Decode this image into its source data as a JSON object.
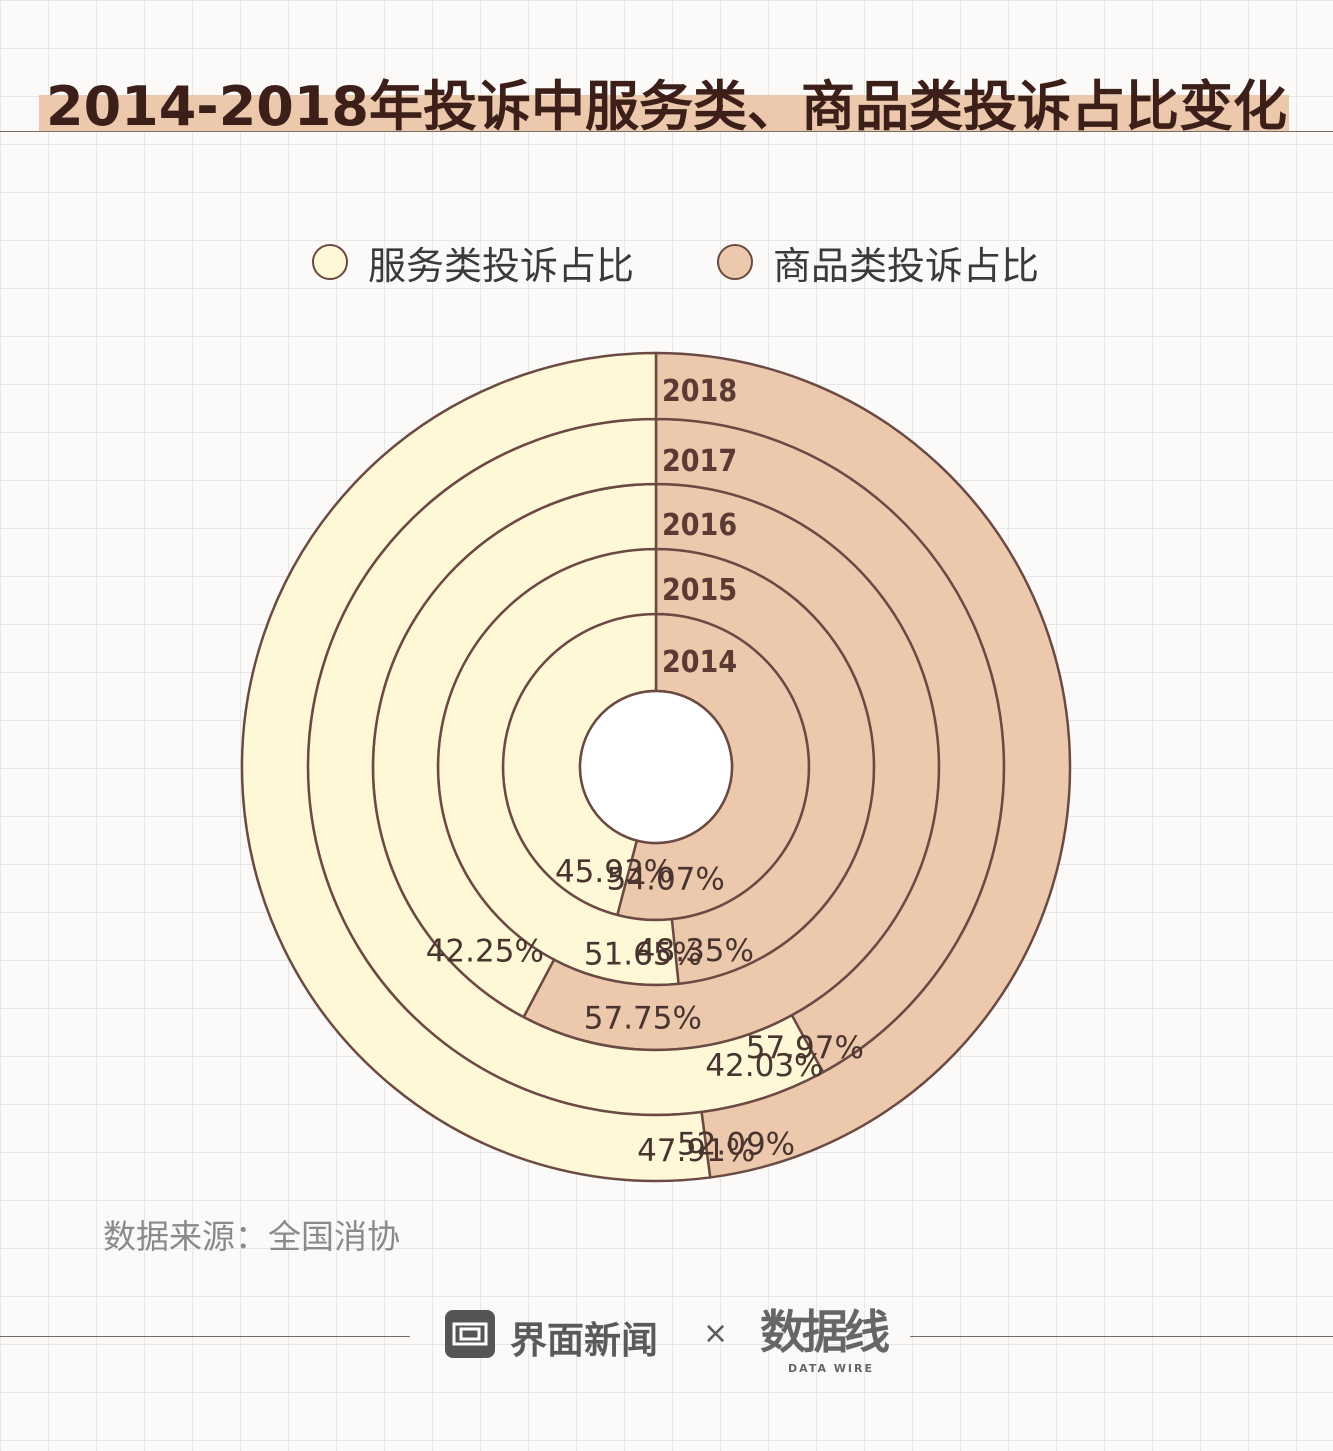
{
  "header": {
    "title": "2014-2018年投诉中服务类、商品类投诉占比变化"
  },
  "legend": [
    {
      "label": "服务类投诉占比",
      "color": "#fff8d6"
    },
    {
      "label": "商品类投诉占比",
      "color": "#ecc9ad"
    }
  ],
  "colors": {
    "service": "#fff8d6",
    "goods": "#ecc9ad",
    "stroke": "#6b4a44"
  },
  "chart_data": {
    "type": "pie",
    "categories": [
      "2014",
      "2015",
      "2016",
      "2017",
      "2018"
    ],
    "series": [
      {
        "name": "服务类投诉占比",
        "values": [
          45.93,
          51.65,
          42.25,
          57.97,
          52.09
        ],
        "labels": [
          "45.93%",
          "51.65%",
          "42.25%",
          "57.97%",
          "52.09%"
        ]
      },
      {
        "name": "商品类投诉占比",
        "values": [
          54.07,
          48.35,
          57.75,
          42.03,
          47.91
        ],
        "labels": [
          "54.07%",
          "48.35%",
          "57.75%",
          "42.03%",
          "47.91%"
        ]
      }
    ],
    "legend_position": "top"
  },
  "source": "数据来源：全国消协",
  "footer": {
    "brand": "界面新闻",
    "times": "×",
    "partner": "数据线",
    "partner_sub": "DATA WIRE"
  }
}
